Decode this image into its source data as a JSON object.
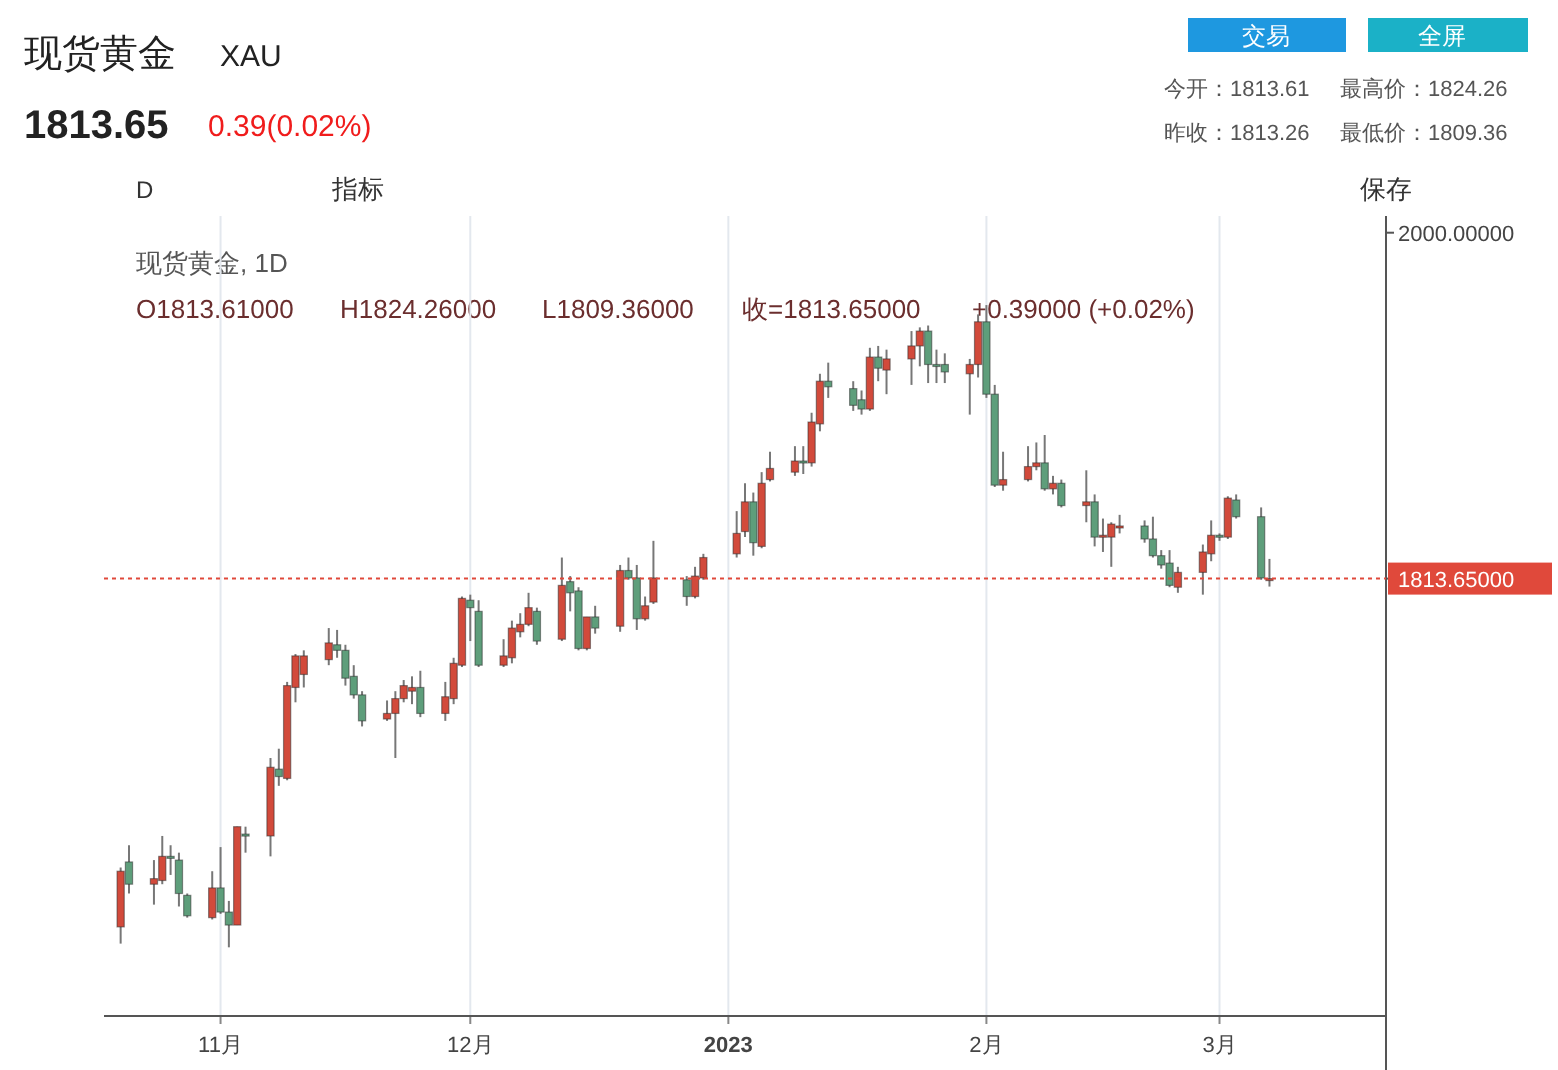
{
  "chart_data": {
    "type": "candlestick",
    "title": "现货黄金",
    "subtitle": "XAU",
    "annotations": [
      "1813.65",
      "0.39(0.02%)",
      "今开：1813.61",
      "最高价：1824.26",
      "昨收：1813.26",
      "最低价：1809.36",
      "交易",
      "全屏",
      "D",
      "指标",
      "保存",
      "现货黄金, 1D",
      "O1813.61000",
      "H1824.26000",
      "L1809.36000",
      "收=1813.65000",
      "+0.39000 (+0.02%)"
    ],
    "x": [
      "2022-10-20",
      "2022-10-21",
      "2022-10-24",
      "2022-10-25",
      "2022-10-26",
      "2022-10-27",
      "2022-10-28",
      "2022-10-31",
      "2022-11-01",
      "2022-11-02",
      "2022-11-03",
      "2022-11-04",
      "2022-11-07",
      "2022-11-08",
      "2022-11-09",
      "2022-11-10",
      "2022-11-11",
      "2022-11-14",
      "2022-11-15",
      "2022-11-16",
      "2022-11-17",
      "2022-11-18",
      "2022-11-21",
      "2022-11-22",
      "2022-11-23",
      "2022-11-24",
      "2022-11-25",
      "2022-11-28",
      "2022-11-29",
      "2022-11-30",
      "2022-12-01",
      "2022-12-02",
      "2022-12-05",
      "2022-12-06",
      "2022-12-07",
      "2022-12-08",
      "2022-12-09",
      "2022-12-12",
      "2022-12-13",
      "2022-12-14",
      "2022-12-15",
      "2022-12-16",
      "2022-12-19",
      "2022-12-20",
      "2022-12-21",
      "2022-12-22",
      "2022-12-23",
      "2022-12-27",
      "2022-12-28",
      "2022-12-29",
      "2023-01-02",
      "2023-01-03",
      "2023-01-04",
      "2023-01-05",
      "2023-01-06",
      "2023-01-09",
      "2023-01-10",
      "2023-01-11",
      "2023-01-12",
      "2023-01-13",
      "2023-01-16",
      "2023-01-17",
      "2023-01-18",
      "2023-01-19",
      "2023-01-20",
      "2023-01-23",
      "2023-01-24",
      "2023-01-25",
      "2023-01-26",
      "2023-01-27",
      "2023-01-30",
      "2023-01-31",
      "2023-02-01",
      "2023-02-02",
      "2023-02-03",
      "2023-02-06",
      "2023-02-07",
      "2023-02-08",
      "2023-02-09",
      "2023-02-10",
      "2023-02-13",
      "2023-02-14",
      "2023-02-15",
      "2023-02-16",
      "2023-02-17",
      "2023-02-20",
      "2023-02-21",
      "2023-02-22",
      "2023-02-23",
      "2023-02-24",
      "2023-02-27",
      "2023-02-28",
      "2023-03-01",
      "2023-03-02",
      "2023-03-03",
      "2023-03-06",
      "2023-03-07"
    ],
    "ohlc": [
      [
        1626,
        1658,
        1617,
        1656
      ],
      [
        1661,
        1670,
        1644,
        1649
      ],
      [
        1649,
        1662,
        1638,
        1652
      ],
      [
        1651,
        1675,
        1649,
        1664
      ],
      [
        1664,
        1670,
        1654,
        1663
      ],
      [
        1662,
        1666,
        1637,
        1644
      ],
      [
        1643,
        1644,
        1631,
        1632
      ],
      [
        1631,
        1656,
        1630,
        1647
      ],
      [
        1647,
        1669,
        1633,
        1634
      ],
      [
        1634,
        1640,
        1615,
        1627
      ],
      [
        1627,
        1680,
        1627,
        1680
      ],
      [
        1676,
        1680,
        1666,
        1675
      ],
      [
        1675,
        1717,
        1664,
        1712
      ],
      [
        1711,
        1722,
        1702,
        1707
      ],
      [
        1706,
        1758,
        1705,
        1756
      ],
      [
        1755,
        1773,
        1747,
        1772
      ],
      [
        1762,
        1775,
        1755,
        1772
      ],
      [
        1770,
        1787,
        1767,
        1779
      ],
      [
        1778,
        1786,
        1771,
        1775
      ],
      [
        1775,
        1778,
        1756,
        1760
      ],
      [
        1761,
        1767,
        1749,
        1751
      ],
      [
        1751,
        1753,
        1734,
        1737
      ],
      [
        1738,
        1748,
        1737,
        1741
      ],
      [
        1741,
        1753,
        1717,
        1749
      ],
      [
        1749,
        1759,
        1747,
        1756
      ],
      [
        1753,
        1761,
        1746,
        1755
      ],
      [
        1755,
        1764,
        1739,
        1741
      ],
      [
        1741,
        1758,
        1737,
        1750
      ],
      [
        1749,
        1771,
        1746,
        1768
      ],
      [
        1767,
        1804,
        1766,
        1803
      ],
      [
        1802,
        1805,
        1780,
        1798
      ],
      [
        1796,
        1802,
        1766,
        1767
      ],
      [
        1767,
        1781,
        1766,
        1772
      ],
      [
        1771,
        1791,
        1768,
        1787
      ],
      [
        1785,
        1795,
        1782,
        1789
      ],
      [
        1789,
        1806,
        1788,
        1798
      ],
      [
        1796,
        1798,
        1778,
        1780
      ],
      [
        1781,
        1825,
        1780,
        1810
      ],
      [
        1812,
        1815,
        1796,
        1806
      ],
      [
        1807,
        1809,
        1775,
        1776
      ],
      [
        1776,
        1793,
        1775,
        1793
      ],
      [
        1793,
        1799,
        1784,
        1787
      ],
      [
        1788,
        1821,
        1785,
        1818
      ],
      [
        1818,
        1825,
        1813,
        1814
      ],
      [
        1814,
        1821,
        1786,
        1792
      ],
      [
        1792,
        1804,
        1791,
        1799
      ],
      [
        1801,
        1834,
        1800,
        1814
      ],
      [
        1813,
        1815,
        1799,
        1804
      ],
      [
        1804,
        1820,
        1803,
        1815
      ],
      [
        1814,
        1827,
        1813,
        1825
      ],
      [
        1827,
        1850,
        1825,
        1838
      ],
      [
        1839,
        1865,
        1836,
        1855
      ],
      [
        1855,
        1860,
        1826,
        1833
      ],
      [
        1831,
        1871,
        1830,
        1865
      ],
      [
        1867,
        1882,
        1866,
        1873
      ],
      [
        1871,
        1885,
        1869,
        1877
      ],
      [
        1877,
        1885,
        1870,
        1876
      ],
      [
        1876,
        1903,
        1874,
        1898
      ],
      [
        1897,
        1924,
        1893,
        1920
      ],
      [
        1920,
        1930,
        1911,
        1917
      ],
      [
        1916,
        1920,
        1904,
        1907
      ],
      [
        1910,
        1915,
        1902,
        1905
      ],
      [
        1905,
        1938,
        1904,
        1933
      ],
      [
        1933,
        1939,
        1920,
        1927
      ],
      [
        1926,
        1937,
        1913,
        1932
      ],
      [
        1932,
        1947,
        1918,
        1939
      ],
      [
        1939,
        1949,
        1928,
        1947
      ],
      [
        1947,
        1950,
        1919,
        1929
      ],
      [
        1929,
        1937,
        1919,
        1928
      ],
      [
        1929,
        1935,
        1919,
        1925
      ],
      [
        1924,
        1932,
        1902,
        1929
      ],
      [
        1929,
        1956,
        1922,
        1952
      ],
      [
        1952,
        1961,
        1911,
        1913
      ],
      [
        1913,
        1918,
        1863,
        1864
      ],
      [
        1864,
        1882,
        1861,
        1867
      ],
      [
        1867,
        1885,
        1866,
        1874
      ],
      [
        1874,
        1887,
        1872,
        1876
      ],
      [
        1876,
        1891,
        1861,
        1862
      ],
      [
        1862,
        1869,
        1859,
        1865
      ],
      [
        1865,
        1867,
        1852,
        1853
      ],
      [
        1853,
        1872,
        1844,
        1855
      ],
      [
        1855,
        1859,
        1831,
        1836
      ],
      [
        1836,
        1846,
        1828,
        1837
      ],
      [
        1836,
        1844,
        1820,
        1843
      ],
      [
        1841,
        1848,
        1838,
        1842
      ],
      [
        1842,
        1845,
        1833,
        1835
      ],
      [
        1835,
        1847,
        1825,
        1826
      ],
      [
        1826,
        1829,
        1819,
        1821
      ],
      [
        1822,
        1829,
        1809,
        1810
      ],
      [
        1809,
        1820,
        1806,
        1817
      ],
      [
        1817,
        1832,
        1805,
        1828
      ],
      [
        1827,
        1845,
        1823,
        1837
      ],
      [
        1837,
        1838,
        1834,
        1836
      ],
      [
        1836,
        1858,
        1835,
        1857
      ],
      [
        1856,
        1859,
        1846,
        1847
      ],
      [
        1847,
        1852,
        1813,
        1814
      ],
      [
        1813.61,
        1824.26,
        1809.36,
        1813.65
      ]
    ],
    "colors": [
      "#d24a3b",
      "#5e9e7b",
      "#d24a3b",
      "#d24a3b",
      "#5e9e7b",
      "#5e9e7b",
      "#5e9e7b",
      "#d24a3b",
      "#5e9e7b",
      "#5e9e7b",
      "#d24a3b",
      "#5e9e7b",
      "#d24a3b",
      "#5e9e7b",
      "#d24a3b",
      "#d24a3b",
      "#d24a3b",
      "#d24a3b",
      "#5e9e7b",
      "#5e9e7b",
      "#5e9e7b",
      "#5e9e7b",
      "#d24a3b",
      "#d24a3b",
      "#d24a3b",
      "#d24a3b",
      "#5e9e7b",
      "#d24a3b",
      "#d24a3b",
      "#d24a3b",
      "#5e9e7b",
      "#5e9e7b",
      "#d24a3b",
      "#d24a3b",
      "#d24a3b",
      "#d24a3b",
      "#5e9e7b",
      "#d24a3b",
      "#5e9e7b",
      "#5e9e7b",
      "#d24a3b",
      "#5e9e7b",
      "#d24a3b",
      "#5e9e7b",
      "#5e9e7b",
      "#d24a3b",
      "#d24a3b",
      "#5e9e7b",
      "#d24a3b",
      "#d24a3b",
      "#d24a3b",
      "#d24a3b",
      "#5e9e7b",
      "#d24a3b",
      "#d24a3b",
      "#d24a3b",
      "#5e9e7b",
      "#d24a3b",
      "#d24a3b",
      "#5e9e7b",
      "#5e9e7b",
      "#5e9e7b",
      "#d24a3b",
      "#5e9e7b",
      "#d24a3b",
      "#d24a3b",
      "#d24a3b",
      "#5e9e7b",
      "#5e9e7b",
      "#5e9e7b",
      "#d24a3b",
      "#d24a3b",
      "#5e9e7b",
      "#5e9e7b",
      "#d24a3b",
      "#d24a3b",
      "#d24a3b",
      "#5e9e7b",
      "#d24a3b",
      "#5e9e7b",
      "#d24a3b",
      "#5e9e7b",
      "#d24a3b",
      "#d24a3b",
      "#d24a3b",
      "#5e9e7b",
      "#5e9e7b",
      "#5e9e7b",
      "#5e9e7b",
      "#d24a3b",
      "#d24a3b",
      "#d24a3b",
      "#5e9e7b",
      "#d24a3b",
      "#5e9e7b",
      "#5e9e7b",
      "#d24a3b"
    ],
    "xlim": [
      "2022-10-18",
      "2023-03-21"
    ],
    "xticks": [
      {
        "value": "2022-11-01",
        "label": "11月"
      },
      {
        "value": "2022-12-01",
        "label": "12月"
      },
      {
        "value": "2023-01-01",
        "label": "2023"
      },
      {
        "value": "2023-02-01",
        "label": "2月"
      },
      {
        "value": "2023-03-01",
        "label": "3月"
      }
    ],
    "ylim": [
      1578,
      2009
    ],
    "yticks": [
      {
        "value": 1813.65,
        "label": "1813.65000"
      },
      {
        "value": 2000,
        "label": "2000.00000"
      }
    ],
    "grid": "x",
    "ref_lines": [
      {
        "axis": "y",
        "value": 1813.65,
        "color": "#e0493b",
        "line_style": "dotted"
      }
    ]
  }
}
